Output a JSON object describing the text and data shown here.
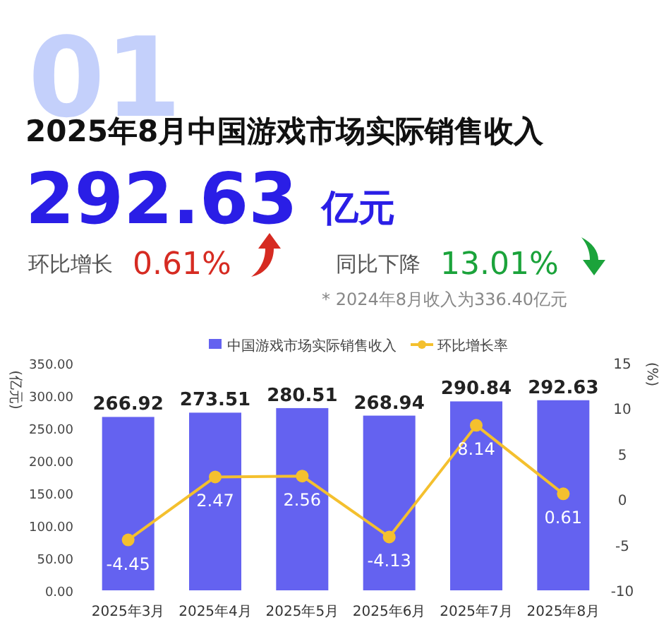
{
  "chart_data": {
    "type": "bar",
    "title": "2025年8月中国游戏市场实际销售收入",
    "annotations": [
      "01",
      "292.63",
      "亿元",
      "环比增长",
      "0.61%",
      "同比下降",
      "13.01%",
      "* 2024年8月收入为336.40亿元"
    ],
    "categories": [
      "2025年3月",
      "2025年4月",
      "2025年5月",
      "2025年6月",
      "2025年7月",
      "2025年8月"
    ],
    "series": [
      {
        "name": "中国游戏市场实际销售收入",
        "color": "#6462f0",
        "values": [
          266.92,
          273.51,
          280.51,
          268.94,
          290.84,
          292.63
        ]
      },
      {
        "name": "环比增长率",
        "type": "line",
        "axis": "y2",
        "color": "#f4c02e",
        "marker": "circle",
        "values": [
          -4.45,
          2.47,
          2.56,
          -4.13,
          8.14,
          0.61
        ]
      }
    ],
    "ylabel": "(亿元)",
    "y2label": "(%)",
    "ylim": [
      0,
      350
    ],
    "yticks": [
      {
        "value": 0,
        "label": "0.00"
      },
      {
        "value": 50,
        "label": "50.00"
      },
      {
        "value": 100,
        "label": "100.00"
      },
      {
        "value": 150,
        "label": "150.00"
      },
      {
        "value": 200,
        "label": "200.00"
      },
      {
        "value": 250,
        "label": "250.00"
      },
      {
        "value": 300,
        "label": "300.00"
      },
      {
        "value": 350,
        "label": "350.00"
      }
    ],
    "y2lim": [
      -10,
      15
    ],
    "y2ticks": [
      -10,
      -5,
      0,
      5,
      10,
      15
    ],
    "data_labels": true,
    "legend": "top",
    "grid": false
  }
}
